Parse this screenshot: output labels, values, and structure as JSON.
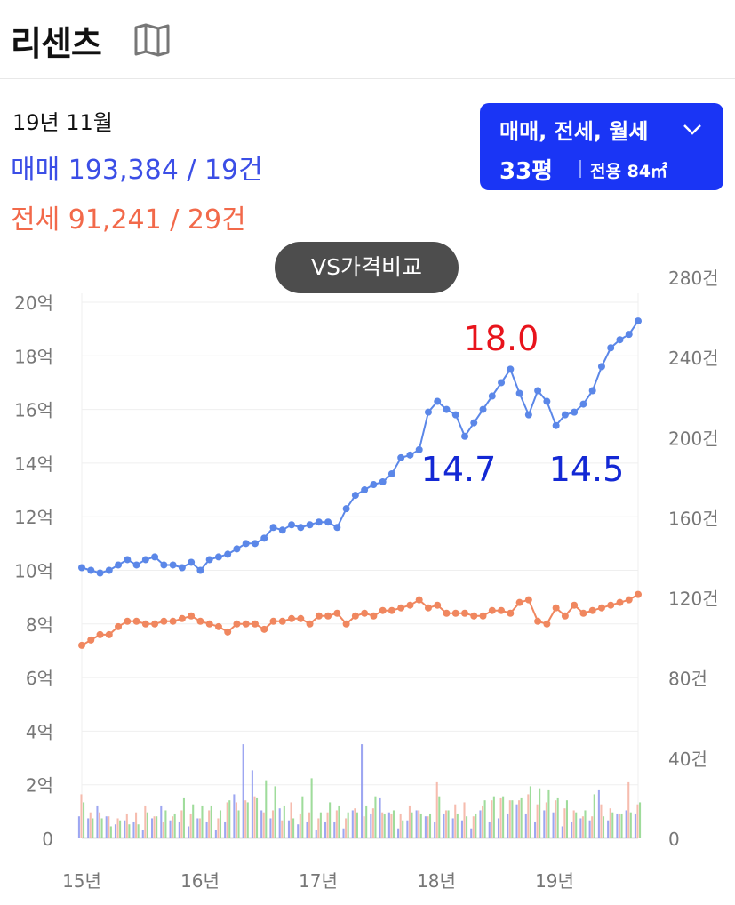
{
  "header": {
    "apt_name": "리센츠",
    "map_icon": "map-icon"
  },
  "summary": {
    "date": "19년 11월",
    "sale_line": "매매 193,384 / 19건",
    "jeonse_line": "전세 91,241 / 29건"
  },
  "filter": {
    "types_label": "매매, 전세, 월세",
    "size_label": "33평",
    "area_label": "전용 84㎡",
    "icon": "chevron-down-icon"
  },
  "vs_button": {
    "label": "VS가격비교"
  },
  "colors": {
    "sale": "#5b87e8",
    "jeonse": "#f0875f",
    "annot_max": "#e8141c",
    "annot_min": "#1328d4",
    "vol_sale": "#8c96ee",
    "vol_jeonse": "#f5b0a0",
    "vol_rent": "#8ed68a",
    "filter_bg": "#1a35f5"
  },
  "chart_data": {
    "type": "line",
    "x_ticks": [
      "15년",
      "16년",
      "17년",
      "18년",
      "19년"
    ],
    "y_left_ticks": [
      "0",
      "2억",
      "4억",
      "6억",
      "8억",
      "10억",
      "12억",
      "14억",
      "16억",
      "18억",
      "20억"
    ],
    "y_left_range": [
      0,
      20
    ],
    "y_right_ticks": [
      "0",
      "40건",
      "80건",
      "120건",
      "160건",
      "200건",
      "240건",
      "280건"
    ],
    "y_right_range": [
      0,
      280
    ],
    "grid": true,
    "series": [
      {
        "key": "sale",
        "values": [
          10.1,
          10.0,
          9.9,
          10.0,
          10.2,
          10.4,
          10.2,
          10.4,
          10.5,
          10.2,
          10.2,
          10.1,
          10.3,
          10.0,
          10.4,
          10.5,
          10.6,
          10.8,
          11.0,
          11.0,
          11.2,
          11.6,
          11.5,
          11.7,
          11.6,
          11.7,
          11.8,
          11.8,
          11.6,
          12.3,
          12.8,
          13.0,
          13.2,
          13.3,
          13.6,
          14.2,
          14.3,
          14.5,
          15.9,
          16.3,
          16.0,
          15.8,
          15.0,
          15.5,
          16.0,
          16.5,
          17.0,
          17.5,
          16.6,
          15.8,
          16.7,
          16.3,
          15.4,
          15.8,
          15.9,
          16.2,
          16.7,
          17.6,
          18.3,
          18.6,
          18.8,
          19.3
        ]
      },
      {
        "key": "jeonse",
        "values": [
          7.2,
          7.4,
          7.6,
          7.6,
          7.9,
          8.1,
          8.1,
          8.0,
          8.0,
          8.1,
          8.1,
          8.2,
          8.3,
          8.1,
          8.0,
          7.9,
          7.7,
          8.0,
          8.0,
          8.0,
          7.8,
          8.1,
          8.1,
          8.2,
          8.2,
          8.0,
          8.3,
          8.3,
          8.4,
          8.0,
          8.3,
          8.4,
          8.3,
          8.5,
          8.5,
          8.6,
          8.7,
          8.9,
          8.6,
          8.7,
          8.4,
          8.4,
          8.4,
          8.3,
          8.3,
          8.5,
          8.5,
          8.4,
          8.8,
          8.9,
          8.1,
          8.0,
          8.6,
          8.3,
          8.7,
          8.4,
          8.5,
          8.6,
          8.7,
          8.8,
          8.9,
          9.1
        ]
      }
    ],
    "volume": {
      "sale": [
        11,
        10,
        16,
        11,
        7,
        9,
        8,
        4,
        10,
        16,
        9,
        8,
        6,
        10,
        8,
        4,
        8,
        22,
        47,
        34,
        14,
        10,
        15,
        9,
        7,
        8,
        4,
        8,
        8,
        5,
        14,
        47,
        12,
        20,
        13,
        5,
        9,
        14,
        11,
        8,
        12,
        10,
        9,
        5,
        14,
        8,
        10,
        12,
        17,
        12,
        8,
        14,
        13,
        6,
        8,
        10,
        9,
        24,
        9,
        12,
        14,
        12
      ],
      "jeonse": [
        22,
        13,
        13,
        11,
        10,
        12,
        13,
        16,
        11,
        8,
        11,
        14,
        12,
        10,
        14,
        10,
        18,
        18,
        19,
        21,
        13,
        14,
        9,
        18,
        12,
        13,
        10,
        13,
        14,
        10,
        15,
        11,
        15,
        13,
        12,
        12,
        16,
        14,
        11,
        28,
        14,
        17,
        18,
        11,
        16,
        19,
        20,
        19,
        19,
        22,
        17,
        18,
        19,
        15,
        14,
        11,
        11,
        17,
        15,
        12,
        28,
        17
      ],
      "rent": [
        18,
        10,
        10,
        6,
        9,
        7,
        7,
        13,
        11,
        14,
        12,
        20,
        17,
        16,
        16,
        14,
        19,
        14,
        18,
        20,
        29,
        26,
        16,
        10,
        21,
        30,
        13,
        18,
        16,
        13,
        13,
        16,
        21,
        12,
        14,
        9,
        13,
        12,
        12,
        21,
        14,
        12,
        11,
        12,
        19,
        21,
        21,
        19,
        20,
        26,
        25,
        24,
        20,
        19,
        13,
        14,
        22,
        11,
        13,
        12,
        13,
        18
      ]
    },
    "annotations": [
      {
        "text": "18.0",
        "kind": "max",
        "x_index": 47
      },
      {
        "text": "14.7",
        "kind": "min",
        "x_index": 42
      },
      {
        "text": "14.5",
        "kind": "min",
        "x_index": 52
      }
    ]
  }
}
